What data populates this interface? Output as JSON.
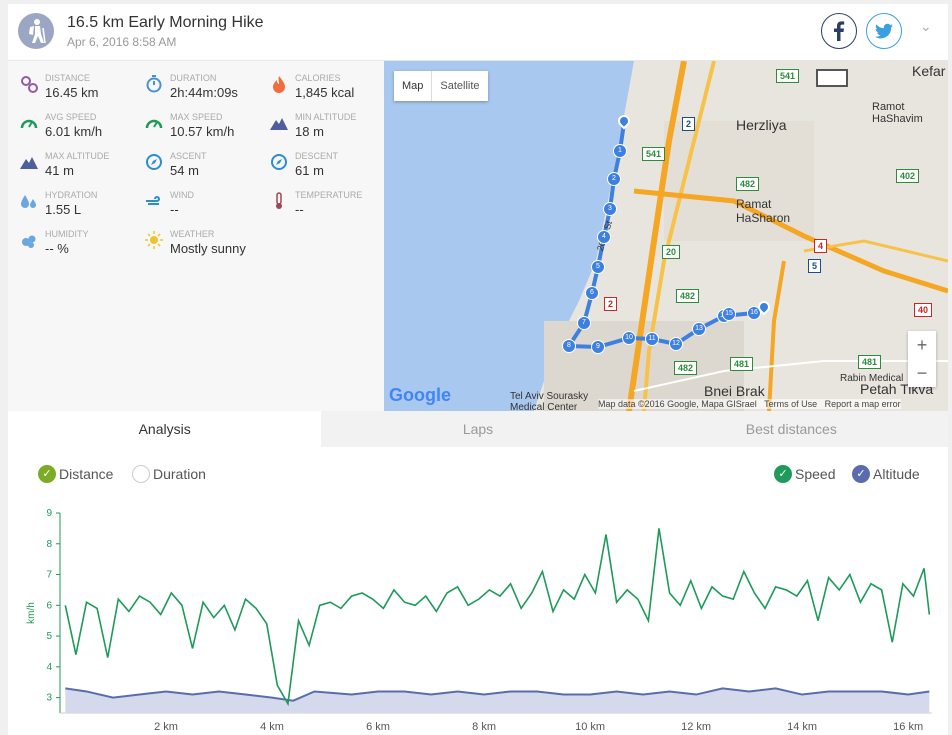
{
  "header": {
    "title": "16.5 km Early Morning Hike",
    "subtitle": "Apr 6, 2016 8:58 AM"
  },
  "stats": [
    {
      "label": "DISTANCE",
      "value": "16.45 km",
      "icon": "distance-icon",
      "color": "#8e5ea2"
    },
    {
      "label": "DURATION",
      "value": "2h:44m:09s",
      "icon": "stopwatch-icon",
      "color": "#4a90d9"
    },
    {
      "label": "CALORIES",
      "value": "1,845 kcal",
      "icon": "flame-icon",
      "color": "#f26d3d"
    },
    {
      "label": "AVG SPEED",
      "value": "6.01 km/h",
      "icon": "speedometer-icon",
      "color": "#1e9a5a"
    },
    {
      "label": "MAX SPEED",
      "value": "10.57 km/h",
      "icon": "speedometer-icon",
      "color": "#1e9a5a"
    },
    {
      "label": "MIN ALTITUDE",
      "value": "18 m",
      "icon": "mountain-icon",
      "color": "#4c5f9c"
    },
    {
      "label": "MAX ALTITUDE",
      "value": "41 m",
      "icon": "mountain-icon",
      "color": "#4c5f9c"
    },
    {
      "label": "ASCENT",
      "value": "54 m",
      "icon": "compass-icon",
      "color": "#2a8fd1"
    },
    {
      "label": "DESCENT",
      "value": "61 m",
      "icon": "compass-icon",
      "color": "#2a8fd1"
    },
    {
      "label": "HYDRATION",
      "value": "1.55 L",
      "icon": "water-drops-icon",
      "color": "#6aa6e0"
    },
    {
      "label": "WIND",
      "value": "--",
      "icon": "wind-icon",
      "color": "#2a8fd1"
    },
    {
      "label": "TEMPERATURE",
      "value": "--",
      "icon": "thermometer-icon",
      "color": "#a0455a"
    },
    {
      "label": "HUMIDITY",
      "value": "-- %",
      "icon": "humidity-icon",
      "color": "#6aa6e0"
    },
    {
      "label": "WEATHER",
      "value": "Mostly sunny",
      "icon": "sun-icon",
      "color": "#f2c230"
    }
  ],
  "map": {
    "btn_map": "Map",
    "btn_satellite": "Satellite",
    "labels": {
      "herzliya": "Herzliya",
      "ramat_hasharon": "Ramat\nHaSharon",
      "ramot_hashavim": "Ramot\nHaShavim",
      "kefar": "Kefar",
      "bnei_brak": "Bnei Brak",
      "petah_tikva": "Petah Tikva",
      "rabin": "Rabin Medical",
      "souraski": "Tel Aviv Sourasky\nMedical Center",
      "st": "2040 St"
    },
    "roads": [
      "541",
      "2",
      "541",
      "482",
      "20",
      "2",
      "482",
      "4",
      "5",
      "481",
      "481",
      "402",
      "40",
      "482"
    ],
    "markers": [
      "1",
      "2",
      "3",
      "4",
      "5",
      "6",
      "7",
      "8",
      "9",
      "10",
      "11",
      "12",
      "13",
      "14",
      "15",
      "16"
    ],
    "attribution": "Map data ©2016 Google, Mapa GISrael",
    "terms": "Terms of Use",
    "report": "Report a map error",
    "google": "Google"
  },
  "tabs": [
    "Analysis",
    "Laps",
    "Best distances"
  ],
  "toggles": {
    "distance": "Distance",
    "duration": "Duration",
    "speed": "Speed",
    "altitude": "Altitude"
  },
  "chart_data": {
    "type": "line",
    "xlabel": "",
    "ylabel": "km/h",
    "xlim": [
      0,
      16.45
    ],
    "ylim": [
      2.5,
      9
    ],
    "xticks": [
      "2 km",
      "4 km",
      "6 km",
      "8 km",
      "10 km",
      "12 km",
      "14 km",
      "16 km"
    ],
    "yticks": [
      "3",
      "4",
      "5",
      "6",
      "7",
      "8",
      "9"
    ],
    "series": [
      {
        "name": "Speed",
        "color": "#1e9a5a",
        "x": [
          0.1,
          0.3,
          0.5,
          0.7,
          0.9,
          1.1,
          1.3,
          1.5,
          1.7,
          1.9,
          2.1,
          2.3,
          2.5,
          2.7,
          2.9,
          3.1,
          3.3,
          3.5,
          3.7,
          3.9,
          4.1,
          4.3,
          4.5,
          4.7,
          4.9,
          5.1,
          5.3,
          5.5,
          5.7,
          5.9,
          6.1,
          6.3,
          6.5,
          6.7,
          6.9,
          7.1,
          7.3,
          7.5,
          7.7,
          7.9,
          8.1,
          8.3,
          8.5,
          8.7,
          8.9,
          9.1,
          9.3,
          9.5,
          9.7,
          9.9,
          10.1,
          10.3,
          10.5,
          10.7,
          10.9,
          11.1,
          11.3,
          11.5,
          11.7,
          11.9,
          12.1,
          12.3,
          12.5,
          12.7,
          12.9,
          13.1,
          13.3,
          13.5,
          13.7,
          13.9,
          14.1,
          14.3,
          14.5,
          14.7,
          14.9,
          15.1,
          15.3,
          15.5,
          15.7,
          15.9,
          16.1,
          16.3,
          16.4
        ],
        "values": [
          6.0,
          4.4,
          6.1,
          5.9,
          4.3,
          6.2,
          5.8,
          6.3,
          6.1,
          5.7,
          6.4,
          6.0,
          4.6,
          6.1,
          5.6,
          6.0,
          5.2,
          6.2,
          5.9,
          5.4,
          3.4,
          2.8,
          5.5,
          4.7,
          6.0,
          6.1,
          5.9,
          6.3,
          6.4,
          6.2,
          5.9,
          6.5,
          6.1,
          6.0,
          6.3,
          5.8,
          6.4,
          6.6,
          6.0,
          6.2,
          6.5,
          6.3,
          6.7,
          5.9,
          6.4,
          7.1,
          5.8,
          6.5,
          6.2,
          7.0,
          6.4,
          8.3,
          6.1,
          6.5,
          6.2,
          5.5,
          8.5,
          6.4,
          6.0,
          6.8,
          5.9,
          6.6,
          6.3,
          6.2,
          7.1,
          6.4,
          5.9,
          6.6,
          6.5,
          6.3,
          6.8,
          5.5,
          6.9,
          6.5,
          7.0,
          6.1,
          6.7,
          6.5,
          4.8,
          6.7,
          6.3,
          7.2,
          5.7
        ]
      },
      {
        "name": "Altitude",
        "color": "#5b6cae",
        "x": [
          0.1,
          0.5,
          1.0,
          1.5,
          2.0,
          2.5,
          3.0,
          3.5,
          4.0,
          4.4,
          4.8,
          5.5,
          6.0,
          6.5,
          7.0,
          7.5,
          8.0,
          8.5,
          9.0,
          9.5,
          10.0,
          10.5,
          11.0,
          11.5,
          12.0,
          12.5,
          13.0,
          13.5,
          14.0,
          14.5,
          15.0,
          15.5,
          16.0,
          16.4
        ],
        "values": [
          3.3,
          3.2,
          3.0,
          3.1,
          3.2,
          3.1,
          3.2,
          3.1,
          3.0,
          2.9,
          3.2,
          3.1,
          3.2,
          3.2,
          3.1,
          3.2,
          3.1,
          3.2,
          3.2,
          3.1,
          3.1,
          3.2,
          3.1,
          3.2,
          3.1,
          3.3,
          3.2,
          3.3,
          3.1,
          3.2,
          3.2,
          3.2,
          3.1,
          3.2
        ]
      }
    ]
  }
}
